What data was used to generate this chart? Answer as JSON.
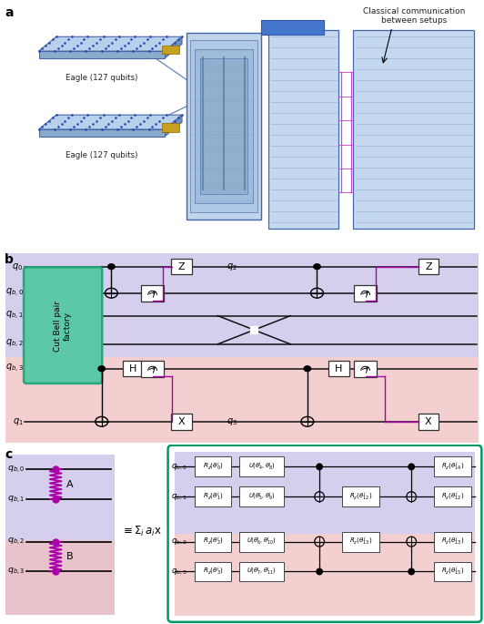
{
  "panel_a": {
    "label": "a",
    "chip_label": "Eagle (127 qubits)",
    "classical_comm_text": "Classical communication\nbetween setups",
    "chip_face_color": "#a8c0e0",
    "chip_edge_color": "#4466aa",
    "chip_top_color": "#c8daf0",
    "chip_side_color": "#7090c0",
    "cryo_color": "#b8cce4",
    "rack_color": "#c8daf0",
    "connect_color": "#6688bb",
    "classical_color": "#cc44cc",
    "blue_bar_color": "#4466aa"
  },
  "panel_b": {
    "label": "b",
    "bg_purple": "#c8c0e8",
    "bg_pink": "#f0c0c0",
    "factory_color": "#5cc8a8",
    "factory_edge": "#30a878",
    "wire_color": "#111111",
    "classical_color": "#aa00aa",
    "gate_fc": "#ffffff",
    "gate_ec": "#333333"
  },
  "panel_c": {
    "label": "c",
    "bg_purple": "#c8c0e8",
    "bg_pink": "#f0c0c0",
    "zigzag_color": "#aa00aa",
    "dot_color": "#aa00aa",
    "box_border": "#009966",
    "gate_fc": "#ffffff",
    "gate_ec": "#333333"
  }
}
